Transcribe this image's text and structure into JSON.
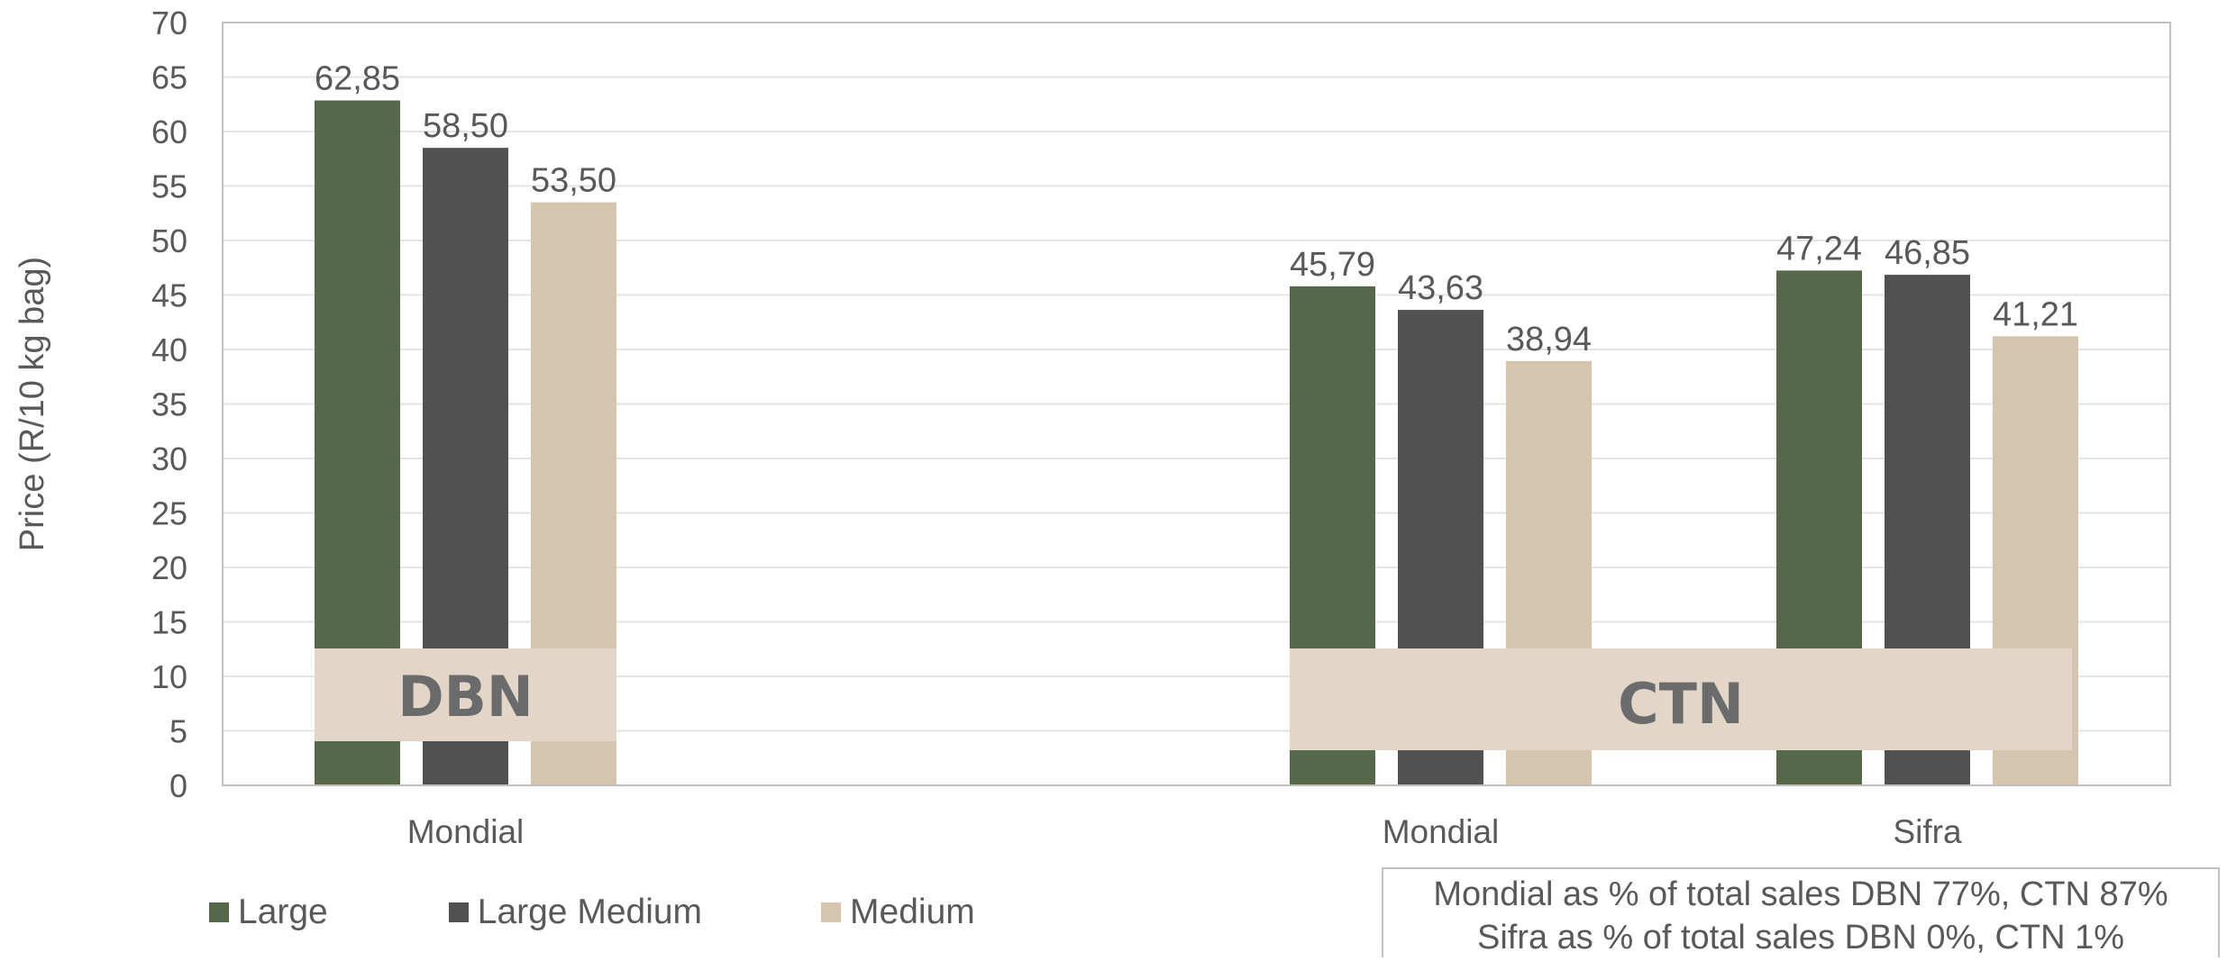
{
  "chart_data": {
    "type": "bar",
    "ylabel": "Price (R/10 kg bag)",
    "ylim": [
      0,
      70
    ],
    "yticks": [
      "0",
      "5",
      "10",
      "15",
      "20",
      "25",
      "30",
      "35",
      "40",
      "45",
      "50",
      "55",
      "60",
      "65",
      "70"
    ],
    "grid": true,
    "legend_position": "bottom-left",
    "categories": [
      "Mondial",
      "Mondial",
      "Sifra"
    ],
    "groups": [
      {
        "label": "DBN",
        "categories": [
          "Mondial"
        ]
      },
      {
        "label": "CTN",
        "categories": [
          "Mondial",
          "Sifra"
        ]
      }
    ],
    "series": [
      {
        "name": "Large",
        "color": "#56684a",
        "values": [
          62.85,
          45.79,
          47.24
        ],
        "labels": [
          "62,85",
          "45,79",
          "47,24"
        ]
      },
      {
        "name": "Large Medium",
        "color": "#515151",
        "values": [
          58.5,
          43.63,
          46.85
        ],
        "labels": [
          "58,50",
          "43,63",
          "46,85"
        ]
      },
      {
        "name": "Medium",
        "color": "#d5c4ae",
        "values": [
          53.5,
          38.94,
          41.21
        ],
        "labels": [
          "53,50",
          "38,94",
          "41,21"
        ]
      }
    ],
    "note": [
      "Mondial as % of total sales DBN 77%, CTN 87%",
      "Sifra as % of total sales DBN 0%, CTN 1%"
    ]
  }
}
